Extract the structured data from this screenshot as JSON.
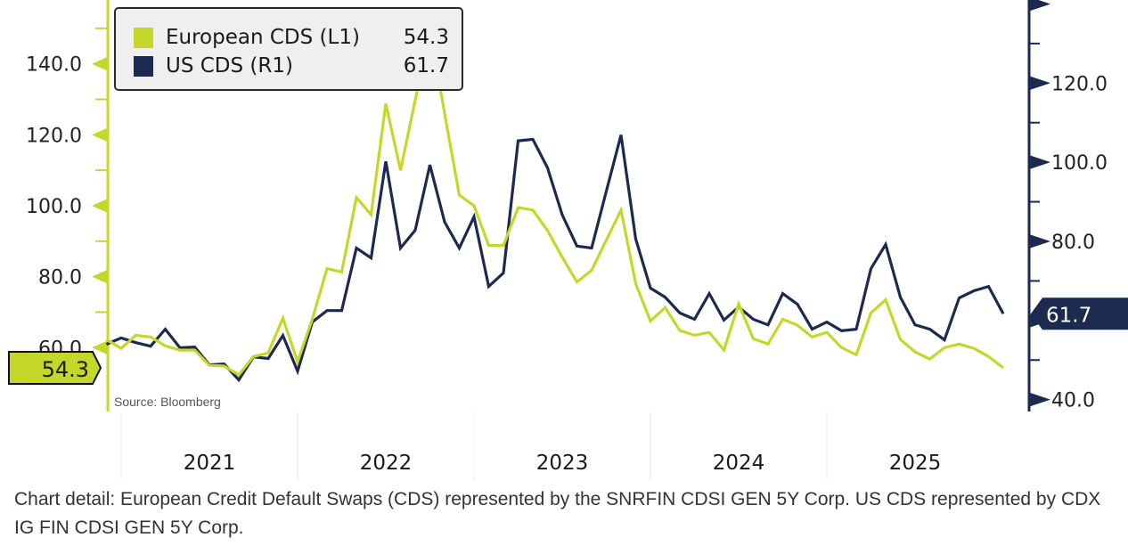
{
  "colors": {
    "european": "#c5d82a",
    "us": "#1b2a4e",
    "separator": "#ececec"
  },
  "legend": {
    "items": [
      {
        "label": "European CDS (L1)",
        "value": "54.3",
        "color": "#c5d82a"
      },
      {
        "label": "US CDS (R1)",
        "value": "61.7",
        "color": "#1b2a4e"
      }
    ]
  },
  "source": "Source: Bloomberg",
  "caption": "Chart detail: European Credit Default Swaps (CDS) represented by the SNRFIN CDSI GEN 5Y Corp. US CDS represented by CDX IG FIN CDSI GEN 5Y Corp.",
  "chart_data": {
    "type": "line",
    "title": "",
    "grid": false,
    "legend_position": "top-left",
    "x_axis": {
      "type": "date",
      "tick_labels": [
        "2021",
        "2022",
        "2023",
        "2024",
        "2025"
      ]
    },
    "y_axes": {
      "left": {
        "range": [
          42,
          158
        ],
        "major_ticks": [
          60,
          80,
          100,
          120,
          140
        ],
        "minor_ticks": [
          70,
          90,
          110,
          130,
          150
        ],
        "tick_labels": [
          "60.0",
          "80.0",
          "100.0",
          "120.0",
          "140.0"
        ],
        "last_value_tag": "54.3"
      },
      "right": {
        "range": [
          37,
          141
        ],
        "major_ticks": [
          40,
          60,
          80,
          100,
          120,
          140
        ],
        "minor_ticks": [
          50,
          70,
          90,
          110,
          130
        ],
        "tick_labels": [
          "40.0",
          "",
          "80.0",
          "100.0",
          "120.0",
          ""
        ],
        "last_value_tag": "61.7"
      }
    },
    "dates": [
      "2020-12",
      "2021-01",
      "2021-02",
      "2021-03",
      "2021-04",
      "2021-05",
      "2021-06",
      "2021-07",
      "2021-08",
      "2021-09",
      "2021-10",
      "2021-11",
      "2021-12",
      "2022-01",
      "2022-02",
      "2022-03",
      "2022-04",
      "2022-05",
      "2022-06",
      "2022-07",
      "2022-08",
      "2022-09",
      "2022-10",
      "2022-11",
      "2022-12",
      "2023-01",
      "2023-02",
      "2023-03",
      "2023-04",
      "2023-05",
      "2023-06",
      "2023-07",
      "2023-08",
      "2023-09",
      "2023-10",
      "2023-11",
      "2023-12",
      "2024-01",
      "2024-02",
      "2024-03",
      "2024-04",
      "2024-05",
      "2024-06",
      "2024-07",
      "2024-08",
      "2024-09",
      "2024-10",
      "2024-11",
      "2024-12",
      "2025-01",
      "2025-02",
      "2025-03",
      "2025-04",
      "2025-05",
      "2025-06",
      "2025-07",
      "2025-08",
      "2025-09",
      "2025-10",
      "2025-11",
      "2025-12",
      "2026-01"
    ],
    "series": [
      {
        "name": "European CDS (L1)",
        "axis": "left",
        "values": [
          62.3,
          59.8,
          63.5,
          63.0,
          60.5,
          59.3,
          59.3,
          55.0,
          54.8,
          52.3,
          57.5,
          58.5,
          68.3,
          56.0,
          68.0,
          82.3,
          81.3,
          102.3,
          97.5,
          128.8,
          110.0,
          129.8,
          149.3,
          126.0,
          103.0,
          100.0,
          88.8,
          88.8,
          99.5,
          98.8,
          93.0,
          85.5,
          78.5,
          81.8,
          90.3,
          98.8,
          78.0,
          67.5,
          71.3,
          64.8,
          63.5,
          64.3,
          59.3,
          72.3,
          62.5,
          61.0,
          68.0,
          66.3,
          63.0,
          64.3,
          60.0,
          58.0,
          69.8,
          73.5,
          62.3,
          58.8,
          56.8,
          60.0,
          61.0,
          59.8,
          57.5,
          54.3
        ]
      },
      {
        "name": "US CDS (R1)",
        "axis": "right",
        "values": [
          54.0,
          55.6,
          54.4,
          53.5,
          57.8,
          53.1,
          53.3,
          48.8,
          49.0,
          45.0,
          50.8,
          50.4,
          56.2,
          47.2,
          59.6,
          62.5,
          62.5,
          78.3,
          75.8,
          100.2,
          78.3,
          82.8,
          99.3,
          84.9,
          78.3,
          86.2,
          68.6,
          72.0,
          105.4,
          105.8,
          98.6,
          86.7,
          78.8,
          78.3,
          92.7,
          106.9,
          80.6,
          68.2,
          65.9,
          61.9,
          60.3,
          66.8,
          60.1,
          63.4,
          60.3,
          58.9,
          66.8,
          64.1,
          57.8,
          59.6,
          57.4,
          57.8,
          73.1,
          79.2,
          65.9,
          58.9,
          57.8,
          55.1,
          65.7,
          67.5,
          68.6,
          61.7
        ]
      }
    ]
  }
}
